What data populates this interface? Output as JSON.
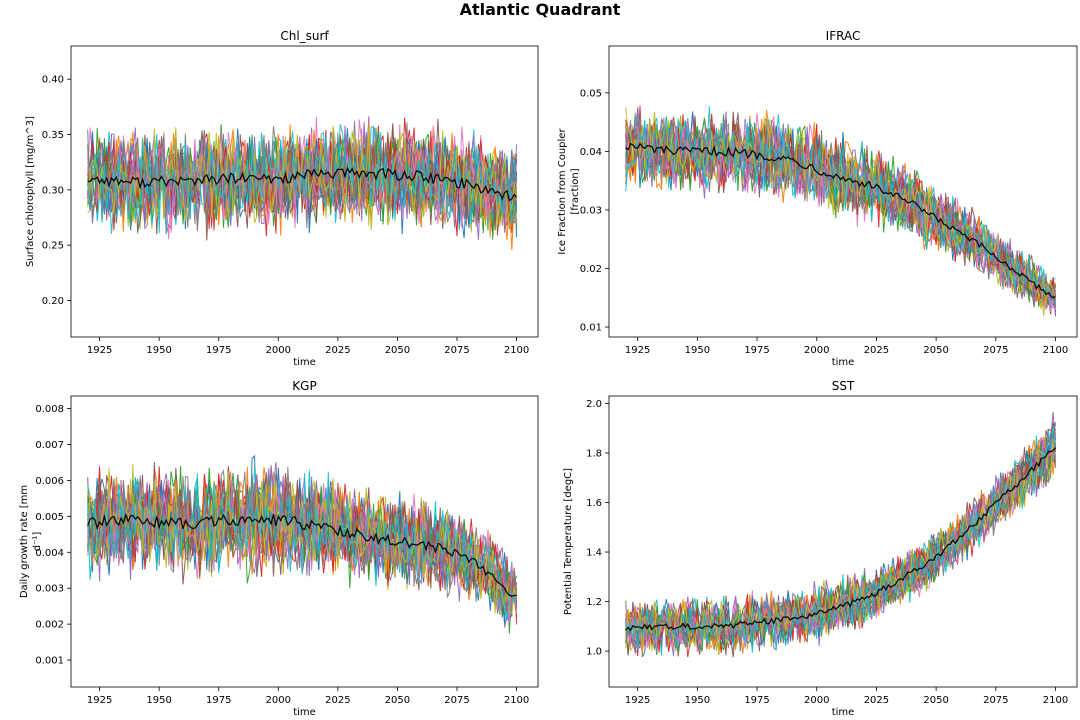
{
  "figure": {
    "title": "Atlantic Quadrant"
  },
  "chart_data": [
    {
      "type": "line",
      "title": "Chl_surf",
      "xlabel": "time",
      "ylabel": "Surface chlorophyll [mg/m^3]",
      "xlim": [
        1913,
        2109
      ],
      "ylim": [
        0.167,
        0.43
      ],
      "xticks": [
        1925,
        1950,
        1975,
        2000,
        2025,
        2050,
        2075,
        2100
      ],
      "yticks": [
        0.2,
        0.25,
        0.3,
        0.35,
        0.4
      ],
      "ytick_labels": [
        "0.20",
        "0.25",
        "0.30",
        "0.35",
        "0.40"
      ],
      "x_range": [
        1920,
        2100
      ],
      "ensemble_members": 30,
      "mean_series": {
        "name": "ensemble mean",
        "color": "#000000",
        "x": [
          1920,
          1940,
          1960,
          1980,
          2000,
          2020,
          2040,
          2060,
          2080,
          2100
        ],
        "y": [
          0.31,
          0.307,
          0.308,
          0.31,
          0.31,
          0.315,
          0.315,
          0.312,
          0.305,
          0.293
        ]
      },
      "spread": {
        "x": [
          1920,
          1960,
          2000,
          2040,
          2080,
          2100
        ],
        "low": [
          0.265,
          0.262,
          0.262,
          0.265,
          0.258,
          0.245
        ],
        "high": [
          0.355,
          0.352,
          0.355,
          0.36,
          0.35,
          0.34
        ]
      }
    },
    {
      "type": "line",
      "title": "IFRAC",
      "xlabel": "time",
      "ylabel": "Ice Fraction from Coupler [fraction]",
      "xlim": [
        1913,
        2109
      ],
      "ylim": [
        0.0083,
        0.058
      ],
      "xticks": [
        1925,
        1950,
        1975,
        2000,
        2025,
        2050,
        2075,
        2100
      ],
      "yticks": [
        0.01,
        0.02,
        0.03,
        0.04,
        0.05
      ],
      "ytick_labels": [
        "0.01",
        "0.02",
        "0.03",
        "0.04",
        "0.05"
      ],
      "x_range": [
        1920,
        2100
      ],
      "ensemble_members": 30,
      "mean_series": {
        "name": "ensemble mean",
        "color": "#000000",
        "x": [
          1920,
          1940,
          1960,
          1975,
          1990,
          2000,
          2010,
          2020,
          2030,
          2040,
          2050,
          2060,
          2070,
          2080,
          2090,
          2100
        ],
        "y": [
          0.041,
          0.04,
          0.04,
          0.0395,
          0.0385,
          0.037,
          0.0355,
          0.0345,
          0.033,
          0.031,
          0.0285,
          0.026,
          0.0235,
          0.0205,
          0.0175,
          0.015
        ]
      },
      "spread": {
        "x": [
          1920,
          1960,
          2000,
          2040,
          2080,
          2100
        ],
        "low": [
          0.034,
          0.033,
          0.03,
          0.025,
          0.016,
          0.011
        ],
        "high": [
          0.048,
          0.047,
          0.044,
          0.037,
          0.025,
          0.019
        ]
      }
    },
    {
      "type": "line",
      "title": "KGP",
      "xlabel": "time",
      "ylabel": "Daily growth rate [mm d⁻¹]",
      "xlim": [
        1913,
        2109
      ],
      "ylim": [
        0.00025,
        0.00835
      ],
      "xticks": [
        1925,
        1950,
        1975,
        2000,
        2025,
        2050,
        2075,
        2100
      ],
      "yticks": [
        0.001,
        0.002,
        0.003,
        0.004,
        0.005,
        0.006,
        0.007,
        0.008
      ],
      "ytick_labels": [
        "0.001",
        "0.002",
        "0.003",
        "0.004",
        "0.005",
        "0.006",
        "0.007",
        "0.008"
      ],
      "x_range": [
        1920,
        2100
      ],
      "ensemble_members": 30,
      "mean_series": {
        "name": "ensemble mean",
        "color": "#000000",
        "x": [
          1920,
          1940,
          1960,
          1980,
          2000,
          2020,
          2040,
          2060,
          2075,
          2085,
          2100
        ],
        "y": [
          0.0048,
          0.0049,
          0.0048,
          0.0049,
          0.0049,
          0.0047,
          0.0044,
          0.0042,
          0.004,
          0.0036,
          0.0027
        ]
      },
      "spread": {
        "x": [
          1920,
          1960,
          2000,
          2040,
          2080,
          2100
        ],
        "low": [
          0.0035,
          0.0034,
          0.0034,
          0.0032,
          0.0028,
          0.0018
        ],
        "high": [
          0.0063,
          0.0064,
          0.0064,
          0.0058,
          0.0052,
          0.0038
        ]
      }
    },
    {
      "type": "line",
      "title": "SST",
      "xlabel": "time",
      "ylabel": "Potential Temperature [degC]",
      "xlim": [
        1913,
        2109
      ],
      "ylim": [
        0.855,
        2.03
      ],
      "xticks": [
        1925,
        1950,
        1975,
        2000,
        2025,
        2050,
        2075,
        2100
      ],
      "yticks": [
        1.0,
        1.2,
        1.4,
        1.6,
        1.8,
        2.0
      ],
      "ytick_labels": [
        "1.0",
        "1.2",
        "1.4",
        "1.6",
        "1.8",
        "2.0"
      ],
      "x_range": [
        1920,
        2100
      ],
      "ensemble_members": 30,
      "mean_series": {
        "name": "ensemble mean",
        "color": "#000000",
        "x": [
          1920,
          1940,
          1960,
          1980,
          2000,
          2010,
          2020,
          2030,
          2040,
          2050,
          2060,
          2070,
          2080,
          2090,
          2100
        ],
        "y": [
          1.09,
          1.1,
          1.1,
          1.12,
          1.15,
          1.18,
          1.21,
          1.26,
          1.32,
          1.38,
          1.46,
          1.55,
          1.64,
          1.73,
          1.83
        ]
      },
      "spread": {
        "x": [
          1920,
          1960,
          2000,
          2040,
          2080,
          2100
        ],
        "low": [
          0.98,
          0.99,
          1.04,
          1.22,
          1.52,
          1.7
        ],
        "high": [
          1.2,
          1.22,
          1.27,
          1.43,
          1.75,
          1.96
        ]
      }
    }
  ],
  "colors": {
    "ensemble_cycle": [
      "#1f77b4",
      "#ff7f0e",
      "#2ca02c",
      "#d62728",
      "#9467bd",
      "#8c564b",
      "#e377c2",
      "#7f7f7f",
      "#bcbd22",
      "#17becf"
    ]
  }
}
